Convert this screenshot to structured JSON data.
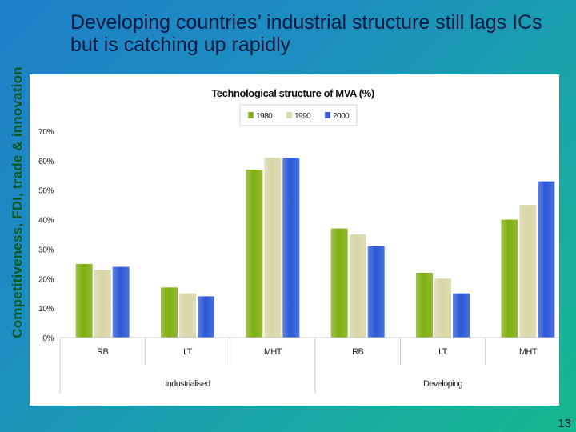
{
  "side_title": "Competitiveness, FDI, trade & innovation",
  "heading": "Developing countries’ industrial structure still lags ICs but is catching up rapidly",
  "page_number": "13",
  "chart_data": {
    "type": "bar",
    "title": "Technological structure of MVA (%)",
    "categories": [
      "RB",
      "LT",
      "MHT",
      "RB",
      "LT",
      "MHT"
    ],
    "groups": [
      {
        "label": "Industrialised",
        "span": [
          0,
          2
        ]
      },
      {
        "label": "Developing",
        "span": [
          3,
          5
        ]
      }
    ],
    "series": [
      {
        "name": "1980",
        "color": "#7fae10",
        "values": [
          25,
          17,
          57,
          37,
          22,
          40
        ]
      },
      {
        "name": "1990",
        "color": "#d8d6a6",
        "values": [
          23,
          15,
          61,
          35,
          20,
          45
        ]
      },
      {
        "name": "2000",
        "color": "#2a57d6",
        "values": [
          24,
          14,
          61,
          31,
          15,
          53
        ]
      }
    ],
    "yticks": [
      "0%",
      "10%",
      "20%",
      "30%",
      "40%",
      "50%",
      "60%",
      "70%"
    ],
    "ylim": [
      0,
      70
    ],
    "grid": false,
    "legend_position": "top-center"
  }
}
